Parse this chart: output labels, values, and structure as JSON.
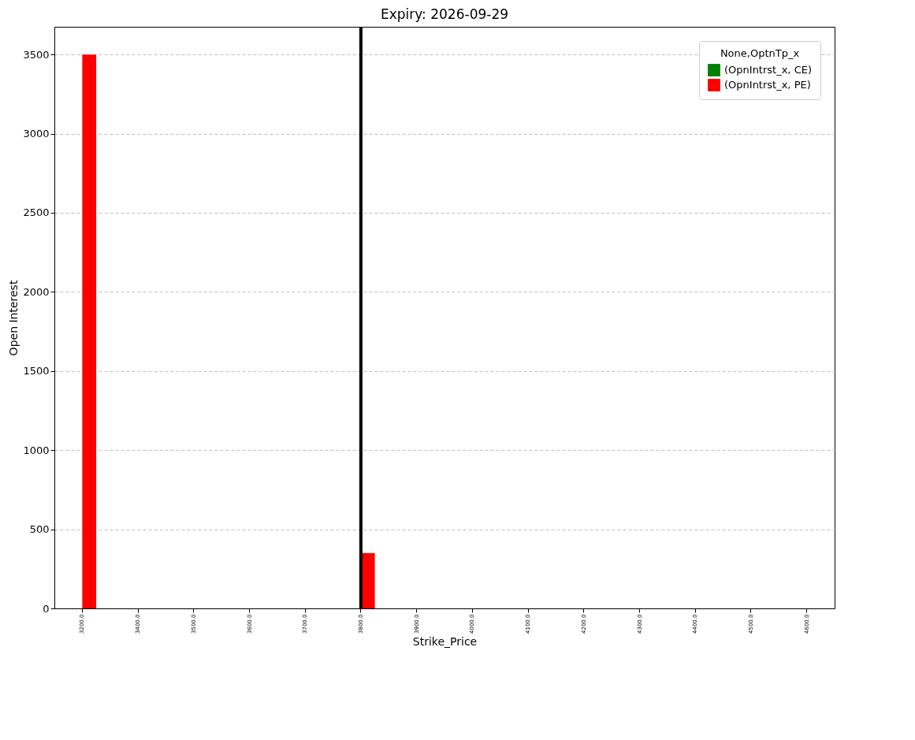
{
  "chart_data": {
    "type": "bar",
    "title": "Expiry: 2026-09-29",
    "xlabel": "Strike_Price",
    "ylabel": "Open Interest",
    "legend_title": "None,OptnTp_x",
    "categories": [
      "3200.0",
      "3400.0",
      "3500.0",
      "3600.0",
      "3700.0",
      "3800.0",
      "3900.0",
      "4000.0",
      "4100.0",
      "4200.0",
      "4300.0",
      "4400.0",
      "4500.0",
      "4600.0"
    ],
    "series": [
      {
        "name": "(OpnIntrst_x, CE)",
        "color": "#008000",
        "values": [
          0,
          0,
          0,
          0,
          0,
          0,
          0,
          0,
          0,
          0,
          0,
          0,
          0,
          0
        ]
      },
      {
        "name": "(OpnIntrst_x, PE)",
        "color": "#ff0000",
        "values": [
          3500,
          0,
          0,
          0,
          0,
          350,
          0,
          0,
          0,
          0,
          0,
          0,
          0,
          0
        ]
      }
    ],
    "ylim": [
      0,
      3675
    ],
    "yticks": [
      0,
      500,
      1000,
      1500,
      2000,
      2500,
      3000,
      3500
    ],
    "grid": "y",
    "legend": "top right",
    "ref_lines": [
      {
        "axis": "x",
        "value": "3800.0",
        "color": "#000000"
      }
    ]
  }
}
